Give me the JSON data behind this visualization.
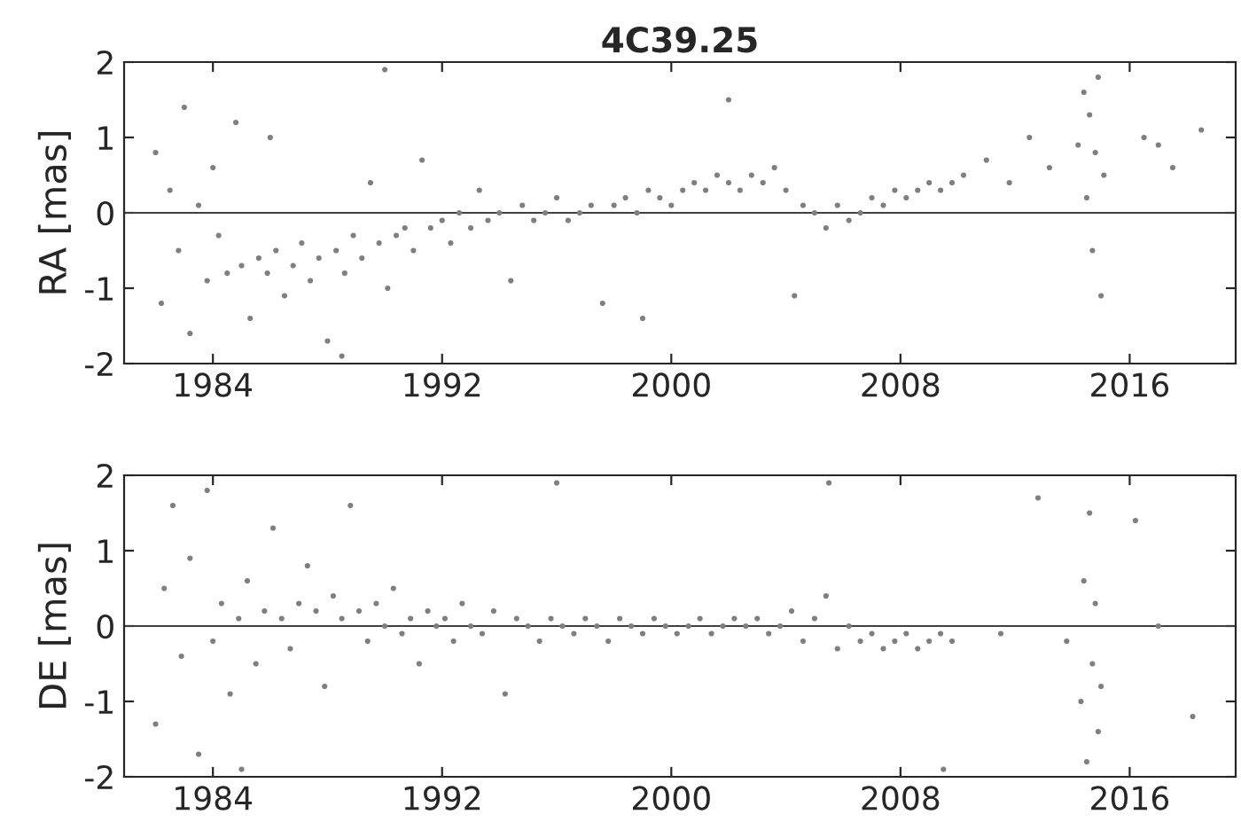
{
  "chart_data": [
    {
      "type": "scatter",
      "title": "4C39.25",
      "ylabel": "RA [mas]",
      "xlim": [
        1980.9,
        2019.7
      ],
      "xticks": [
        1984,
        1992,
        2000,
        2008,
        2016
      ],
      "ylim": [
        -2,
        2
      ],
      "yticks": [
        -2,
        -1,
        0,
        1,
        2
      ],
      "marker": "circle",
      "ref_lines": [
        {
          "axis": "y",
          "value": 0,
          "color": "#404040"
        }
      ],
      "series": [
        {
          "color": "#7f7f7f",
          "x": [
            1982.0,
            1982.2,
            1982.5,
            1982.8,
            1983.0,
            1983.2,
            1983.5,
            1983.8,
            1984.0,
            1984.2,
            1984.5,
            1984.8,
            1985.0,
            1985.3,
            1985.6,
            1985.9,
            1986.2,
            1986.5,
            1986.8,
            1987.1,
            1987.4,
            1987.7,
            1988.0,
            1988.3,
            1988.6,
            1988.9,
            1989.2,
            1989.5,
            1989.8,
            1990.1,
            1990.4,
            1990.7,
            1991.0,
            1991.3,
            1991.6,
            1992.0,
            1992.3,
            1992.6,
            1993.0,
            1993.3,
            1993.6,
            1994.0,
            1994.4,
            1994.8,
            1995.2,
            1995.6,
            1996.0,
            1996.4,
            1996.8,
            1997.2,
            1997.6,
            1998.0,
            1998.4,
            1998.8,
            1999.2,
            1999.6,
            2000.0,
            2000.4,
            2000.8,
            2001.2,
            2001.6,
            2002.0,
            2002.4,
            2002.8,
            2003.2,
            2003.6,
            2004.0,
            2004.3,
            2004.6,
            2005.0,
            2005.4,
            2005.8,
            2006.2,
            2006.6,
            2007.0,
            2007.4,
            2007.8,
            2008.2,
            2008.6,
            2009.0,
            2009.4,
            2009.8,
            2010.2,
            2011.0,
            2011.8,
            2012.5,
            2013.2,
            2014.2,
            2014.4,
            2014.5,
            2014.6,
            2014.7,
            2014.8,
            2014.9,
            2015.0,
            2015.1,
            2016.5,
            2017.5,
            2018.5,
            2017.0,
            1986.0,
            1990.0,
            1988.5,
            1999.0,
            2002.0
          ],
          "values": [
            0.8,
            -1.2,
            0.3,
            -0.5,
            1.4,
            -1.6,
            0.1,
            -0.9,
            0.6,
            -0.3,
            -0.8,
            1.2,
            -0.7,
            -1.4,
            -0.6,
            -0.8,
            -0.5,
            -1.1,
            -0.7,
            -0.4,
            -0.9,
            -0.6,
            -1.7,
            -0.5,
            -0.8,
            -0.3,
            -0.6,
            0.4,
            -0.4,
            -1.0,
            -0.3,
            -0.2,
            -0.5,
            0.7,
            -0.2,
            -0.1,
            -0.4,
            0.0,
            -0.2,
            0.3,
            -0.1,
            0.0,
            -0.9,
            0.1,
            -0.1,
            0.0,
            0.2,
            -0.1,
            0.0,
            0.1,
            -1.2,
            0.1,
            0.2,
            0.0,
            0.3,
            0.2,
            0.1,
            0.3,
            0.4,
            0.3,
            0.5,
            0.4,
            0.3,
            0.5,
            0.4,
            0.6,
            0.3,
            -1.1,
            0.1,
            0.0,
            -0.2,
            0.1,
            -0.1,
            0.0,
            0.2,
            0.1,
            0.3,
            0.2,
            0.3,
            0.4,
            0.3,
            0.4,
            0.5,
            0.7,
            0.4,
            1.0,
            0.6,
            0.9,
            1.6,
            0.2,
            1.3,
            -0.5,
            0.8,
            1.8,
            -1.1,
            0.5,
            1.0,
            0.6,
            1.1,
            0.9,
            1.0,
            1.9,
            -1.9,
            -1.4,
            1.5
          ]
        }
      ]
    },
    {
      "type": "scatter",
      "ylabel": "DE [mas]",
      "xlim": [
        1980.9,
        2019.7
      ],
      "xticks": [
        1984,
        1992,
        2000,
        2008,
        2016
      ],
      "ylim": [
        -2,
        2
      ],
      "yticks": [
        -2,
        -1,
        0,
        1,
        2
      ],
      "marker": "circle",
      "ref_lines": [
        {
          "axis": "y",
          "value": 0,
          "color": "#404040"
        }
      ],
      "series": [
        {
          "color": "#7f7f7f",
          "x": [
            1982.0,
            1982.3,
            1982.6,
            1982.9,
            1983.2,
            1983.5,
            1983.8,
            1984.0,
            1984.3,
            1984.6,
            1984.9,
            1985.2,
            1985.5,
            1985.8,
            1986.1,
            1986.4,
            1986.7,
            1987.0,
            1987.3,
            1987.6,
            1987.9,
            1988.2,
            1988.5,
            1988.8,
            1989.1,
            1989.4,
            1989.7,
            1990.0,
            1990.3,
            1990.6,
            1990.9,
            1991.2,
            1991.5,
            1991.8,
            1992.1,
            1992.4,
            1992.7,
            1993.0,
            1993.4,
            1993.8,
            1994.2,
            1994.6,
            1995.0,
            1995.4,
            1995.8,
            1996.2,
            1996.6,
            1997.0,
            1997.4,
            1997.8,
            1998.2,
            1998.6,
            1999.0,
            1999.4,
            1999.8,
            2000.2,
            2000.6,
            2001.0,
            2001.4,
            2001.8,
            2002.2,
            2002.6,
            2003.0,
            2003.4,
            2003.8,
            2004.2,
            2004.6,
            2005.0,
            2005.4,
            2005.8,
            2006.2,
            2006.6,
            2007.0,
            2007.4,
            2007.8,
            2008.2,
            2008.6,
            2009.0,
            2009.4,
            2009.8,
            2011.5,
            2012.8,
            2013.8,
            2014.3,
            2014.4,
            2014.5,
            2014.6,
            2014.7,
            2014.8,
            2014.9,
            2015.0,
            2016.2,
            2017.0,
            2018.2,
            1985.0,
            1996.0,
            2005.5,
            2009.5
          ],
          "values": [
            -1.3,
            0.5,
            1.6,
            -0.4,
            0.9,
            -1.7,
            1.8,
            -0.2,
            0.3,
            -0.9,
            0.1,
            0.6,
            -0.5,
            0.2,
            1.3,
            0.1,
            -0.3,
            0.3,
            0.8,
            0.2,
            -0.8,
            0.4,
            0.1,
            1.6,
            0.2,
            -0.2,
            0.3,
            0.0,
            0.5,
            -0.1,
            0.1,
            -0.5,
            0.2,
            0.0,
            0.1,
            -0.2,
            0.3,
            0.0,
            -0.1,
            0.2,
            -0.9,
            0.1,
            0.0,
            -0.2,
            0.1,
            0.0,
            -0.1,
            0.1,
            0.0,
            -0.2,
            0.1,
            0.0,
            -0.1,
            0.1,
            0.0,
            -0.1,
            0.0,
            0.1,
            -0.1,
            0.0,
            0.1,
            0.0,
            0.1,
            -0.1,
            0.0,
            0.2,
            -0.2,
            0.1,
            0.4,
            -0.3,
            0.0,
            -0.2,
            -0.1,
            -0.3,
            -0.2,
            -0.1,
            -0.3,
            -0.2,
            -0.1,
            -0.2,
            -0.1,
            1.7,
            -0.2,
            -1.0,
            0.6,
            -1.8,
            1.5,
            -0.5,
            0.3,
            -1.4,
            -0.8,
            1.4,
            0.0,
            -1.2,
            -1.9,
            1.9,
            1.9,
            -1.9
          ]
        }
      ]
    }
  ]
}
